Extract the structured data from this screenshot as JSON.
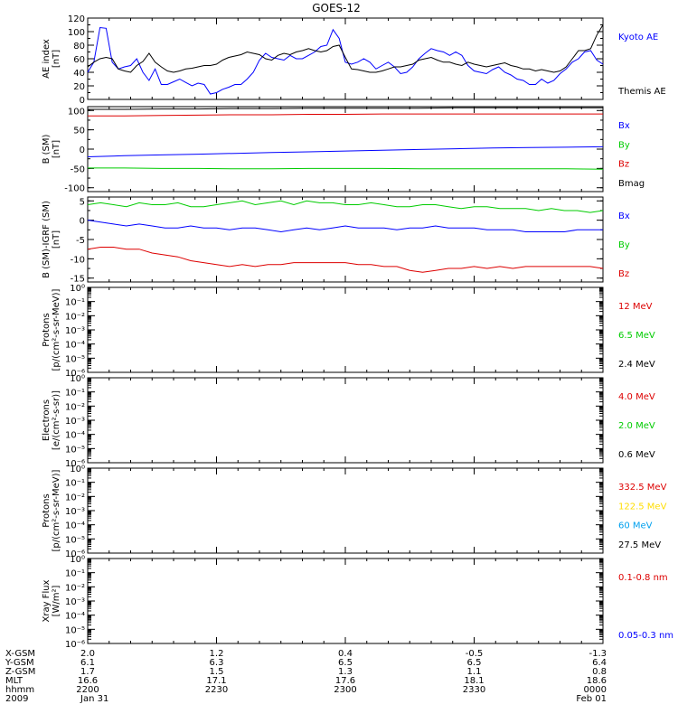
{
  "title": "GOES-12",
  "chart_data": [
    {
      "id": "ae",
      "type": "line",
      "ylabel": [
        "AE index",
        "[nT]"
      ],
      "ylim": [
        0,
        120
      ],
      "yticks": [
        0,
        20,
        40,
        60,
        80,
        100,
        120
      ],
      "log": false,
      "series": [
        {
          "name": "Kyoto AE",
          "color": "#0000ff",
          "values": [
            40,
            55,
            106,
            105,
            55,
            45,
            48,
            50,
            60,
            40,
            28,
            45,
            22,
            22,
            26,
            30,
            25,
            20,
            24,
            22,
            8,
            10,
            15,
            18,
            22,
            22,
            30,
            40,
            58,
            68,
            62,
            60,
            58,
            65,
            60,
            60,
            65,
            70,
            78,
            80,
            103,
            90,
            55,
            52,
            55,
            60,
            55,
            45,
            50,
            55,
            48,
            38,
            40,
            48,
            60,
            68,
            75,
            72,
            70,
            65,
            70,
            65,
            50,
            42,
            40,
            38,
            44,
            48,
            40,
            36,
            30,
            28,
            22,
            22,
            30,
            24,
            28,
            38,
            45,
            55,
            60,
            70,
            72,
            58,
            52
          ]
        },
        {
          "name": "Themis AE",
          "color": "#000000",
          "values": [
            48,
            55,
            60,
            62,
            60,
            45,
            42,
            40,
            50,
            56,
            68,
            55,
            48,
            42,
            40,
            42,
            45,
            46,
            48,
            50,
            50,
            52,
            58,
            62,
            64,
            66,
            70,
            68,
            66,
            60,
            58,
            65,
            68,
            66,
            70,
            72,
            75,
            72,
            70,
            72,
            78,
            80,
            62,
            45,
            44,
            42,
            40,
            40,
            42,
            45,
            48,
            48,
            50,
            52,
            58,
            60,
            62,
            58,
            55,
            55,
            52,
            50,
            55,
            52,
            50,
            48,
            50,
            52,
            54,
            50,
            48,
            45,
            45,
            42,
            44,
            42,
            40,
            42,
            48,
            60,
            72,
            72,
            75,
            95,
            110
          ]
        }
      ],
      "legend": [
        {
          "label": "Kyoto AE",
          "color": "#0000ff"
        },
        {
          "label": "Themis AE",
          "color": "#000000"
        }
      ]
    },
    {
      "id": "bsm",
      "type": "line",
      "ylabel": [
        "B (SM)",
        "[nT]"
      ],
      "ylim": [
        -110,
        110
      ],
      "yticks": [
        -100,
        -50,
        0,
        50,
        100
      ],
      "log": false,
      "series": [
        {
          "name": "Bx",
          "color": "#0000ff",
          "values": [
            -20,
            -17,
            -15,
            -13,
            -11,
            -9,
            -7,
            -5,
            -3,
            -1,
            1,
            3,
            4,
            5,
            6
          ]
        },
        {
          "name": "By",
          "color": "#00cc00",
          "values": [
            -49,
            -49,
            -50,
            -50,
            -51,
            -51,
            -50,
            -50,
            -50,
            -51,
            -51,
            -51,
            -51,
            -51,
            -52
          ]
        },
        {
          "name": "Bz",
          "color": "#dd0000",
          "values": [
            86,
            86,
            87,
            88,
            89,
            89,
            90,
            90,
            91,
            91,
            91,
            91,
            91,
            91,
            91
          ]
        },
        {
          "name": "Bmag",
          "color": "#000000",
          "values": [
            103,
            103,
            104,
            104,
            105,
            105,
            106,
            106,
            106,
            106,
            107,
            107,
            107,
            107,
            107
          ]
        }
      ],
      "legend": [
        {
          "label": "Bx",
          "color": "#0000ff"
        },
        {
          "label": "By",
          "color": "#00cc00"
        },
        {
          "label": "Bz",
          "color": "#dd0000"
        },
        {
          "label": "Bmag",
          "color": "#000000"
        }
      ]
    },
    {
      "id": "bdiff",
      "type": "line",
      "ylabel": [
        "B (SM)-IGRF (SM)",
        "[nT]"
      ],
      "ylim": [
        -16,
        6
      ],
      "yticks": [
        -15,
        -10,
        -5,
        0,
        5
      ],
      "log": false,
      "series": [
        {
          "name": "Bx",
          "color": "#0000ff",
          "values": [
            0,
            -0.5,
            -1,
            -1.5,
            -1,
            -1.5,
            -2,
            -2,
            -1.5,
            -2,
            -2,
            -2.5,
            -2,
            -2,
            -2.5,
            -3,
            -2.5,
            -2,
            -2.5,
            -2,
            -1.5,
            -2,
            -2,
            -2,
            -2.5,
            -2,
            -2,
            -1.5,
            -2,
            -2,
            -2,
            -2.5,
            -2.5,
            -2.5,
            -3,
            -3,
            -3,
            -3,
            -2.5,
            -2.5,
            -2.5
          ]
        },
        {
          "name": "By",
          "color": "#00cc00",
          "values": [
            4,
            4.5,
            4,
            3.5,
            4.5,
            4,
            4,
            4.5,
            3.5,
            3.5,
            4,
            4.5,
            5,
            4,
            4.5,
            5,
            4,
            5,
            4.5,
            4.5,
            4,
            4,
            4.5,
            4,
            3.5,
            3.5,
            4,
            4,
            3.5,
            3,
            3.5,
            3.5,
            3,
            3,
            3,
            2.5,
            3,
            2.5,
            2.5,
            2,
            2.5
          ]
        },
        {
          "name": "Bz",
          "color": "#dd0000",
          "values": [
            -7.5,
            -7,
            -7,
            -7.5,
            -7.5,
            -8.5,
            -9,
            -9.5,
            -10.5,
            -11,
            -11.5,
            -12,
            -11.5,
            -12,
            -11.5,
            -11.5,
            -11,
            -11,
            -11,
            -11,
            -11,
            -11.5,
            -11.5,
            -12,
            -12,
            -13,
            -13.5,
            -13,
            -12.5,
            -12.5,
            -12,
            -12.5,
            -12,
            -12.5,
            -12,
            -12,
            -12,
            -12,
            -12,
            -12,
            -12.5
          ]
        }
      ],
      "legend": [
        {
          "label": "Bx",
          "color": "#0000ff"
        },
        {
          "label": "By",
          "color": "#00cc00"
        },
        {
          "label": "Bz",
          "color": "#dd0000"
        }
      ]
    },
    {
      "id": "protons1",
      "type": "line",
      "ylabel": [
        "Protons",
        "[p/(cm²-s-sr-MeV)]"
      ],
      "ylim": [
        1e-06,
        1
      ],
      "log": true,
      "series": [],
      "legend": [
        {
          "label": "12 MeV",
          "color": "#dd0000"
        },
        {
          "label": "6.5 MeV",
          "color": "#00cc00"
        },
        {
          "label": "2.4 MeV",
          "color": "#000000"
        }
      ]
    },
    {
      "id": "electrons",
      "type": "line",
      "ylabel": [
        "Electrons",
        "[e/(cm²-s-sr)]"
      ],
      "ylim": [
        1e-06,
        1
      ],
      "log": true,
      "series": [],
      "legend": [
        {
          "label": "4.0 MeV",
          "color": "#dd0000"
        },
        {
          "label": "2.0 MeV",
          "color": "#00cc00"
        },
        {
          "label": "0.6 MeV",
          "color": "#000000"
        }
      ]
    },
    {
      "id": "protons2",
      "type": "line",
      "ylabel": [
        "Protons",
        "[p/(cm²-s-sr-MeV)]"
      ],
      "ylim": [
        1e-06,
        1
      ],
      "log": true,
      "series": [],
      "legend": [
        {
          "label": "332.5 MeV",
          "color": "#dd0000"
        },
        {
          "label": "122.5 MeV",
          "color": "#ffdd00"
        },
        {
          "label": "60 MeV",
          "color": "#00a0ee"
        },
        {
          "label": "27.5 MeV",
          "color": "#000000"
        }
      ]
    },
    {
      "id": "xray",
      "type": "line",
      "ylabel": [
        "Xray Flux",
        "[W/m²]"
      ],
      "ylim": [
        1e-06,
        1
      ],
      "log": true,
      "series": [],
      "legend": [
        {
          "label": "0.1-0.8 nm",
          "color": "#dd0000"
        },
        {
          "label": "0.05-0.3 nm",
          "color": "#0000ff"
        }
      ]
    }
  ],
  "ephemeris": {
    "row_labels": [
      "X-GSM",
      "Y-GSM",
      "Z-GSM",
      "MLT",
      "hhmm",
      "2009"
    ],
    "columns": [
      [
        "2.0",
        "6.1",
        "1.7",
        "16.6",
        "2200",
        "Jan 31"
      ],
      [
        "1.2",
        "6.3",
        "1.5",
        "17.1",
        "2230",
        ""
      ],
      [
        "0.4",
        "6.5",
        "1.3",
        "17.6",
        "2300",
        ""
      ],
      [
        "-0.5",
        "6.5",
        "1.1",
        "18.1",
        "2330",
        ""
      ],
      [
        "-1.3",
        "6.4",
        "0.8",
        "18.6",
        "0000",
        "Feb 01"
      ]
    ]
  }
}
